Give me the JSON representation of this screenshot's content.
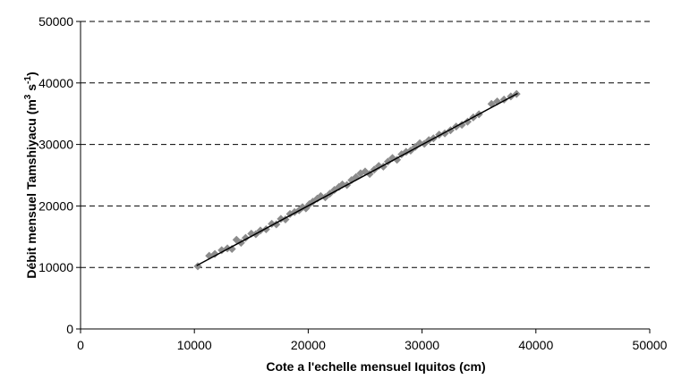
{
  "chart_data": {
    "type": "scatter",
    "title": "",
    "xlabel": "Cote a l'echelle mensuel Iquitos (cm)",
    "ylabel": {
      "prefix": "Débit mensuel Tamshiyacu (m",
      "sup1": "3",
      "mid": " s",
      "sup2": "-1",
      "suffix": ")"
    },
    "xlim": [
      0,
      50000
    ],
    "ylim": [
      0,
      50000
    ],
    "x_ticks": [
      0,
      10000,
      20000,
      30000,
      40000,
      50000
    ],
    "y_ticks": [
      0,
      10000,
      20000,
      30000,
      40000,
      50000
    ],
    "grid": "horizontal-dashed",
    "legend": "none",
    "marker_color": "#8c8c8c",
    "line_color": "#000000",
    "trendline": {
      "x": [
        10200,
        38400
      ],
      "y": [
        10300,
        38300
      ]
    },
    "points": [
      [
        10300,
        10200
      ],
      [
        11300,
        11900
      ],
      [
        11800,
        12200
      ],
      [
        12400,
        12800
      ],
      [
        12900,
        13100
      ],
      [
        13300,
        13000
      ],
      [
        13700,
        14500
      ],
      [
        14100,
        14000
      ],
      [
        14500,
        14800
      ],
      [
        15000,
        15500
      ],
      [
        15400,
        15400
      ],
      [
        15800,
        16000
      ],
      [
        16300,
        16200
      ],
      [
        16800,
        17100
      ],
      [
        17200,
        17000
      ],
      [
        17600,
        17900
      ],
      [
        18000,
        17800
      ],
      [
        18400,
        18700
      ],
      [
        18800,
        19000
      ],
      [
        19200,
        19300
      ],
      [
        19500,
        19800
      ],
      [
        19800,
        19600
      ],
      [
        20100,
        20300
      ],
      [
        20400,
        20700
      ],
      [
        20800,
        21200
      ],
      [
        21100,
        21600
      ],
      [
        21500,
        21400
      ],
      [
        21900,
        22000
      ],
      [
        22300,
        22600
      ],
      [
        22700,
        23100
      ],
      [
        23000,
        23500
      ],
      [
        23400,
        23400
      ],
      [
        23800,
        24200
      ],
      [
        24200,
        24700
      ],
      [
        24600,
        25300
      ],
      [
        25000,
        25600
      ],
      [
        25400,
        25200
      ],
      [
        25800,
        25900
      ],
      [
        26200,
        26500
      ],
      [
        26600,
        26400
      ],
      [
        27000,
        27200
      ],
      [
        27400,
        27800
      ],
      [
        27800,
        27500
      ],
      [
        28200,
        28400
      ],
      [
        28600,
        28800
      ],
      [
        29000,
        29000
      ],
      [
        29400,
        29600
      ],
      [
        29800,
        30200
      ],
      [
        30200,
        30100
      ],
      [
        30600,
        30700
      ],
      [
        31000,
        31000
      ],
      [
        31500,
        31600
      ],
      [
        32000,
        31800
      ],
      [
        32500,
        32300
      ],
      [
        33000,
        32900
      ],
      [
        33500,
        33200
      ],
      [
        34000,
        33700
      ],
      [
        34500,
        34400
      ],
      [
        35000,
        34900
      ],
      [
        36100,
        36600
      ],
      [
        36600,
        37000
      ],
      [
        37200,
        37300
      ],
      [
        37800,
        37800
      ],
      [
        38300,
        38200
      ]
    ]
  }
}
